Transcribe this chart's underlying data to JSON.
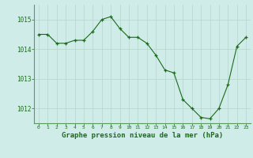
{
  "x": [
    0,
    1,
    2,
    3,
    4,
    5,
    6,
    7,
    8,
    9,
    10,
    11,
    12,
    13,
    14,
    15,
    16,
    17,
    18,
    19,
    20,
    21,
    22,
    23
  ],
  "y": [
    1014.5,
    1014.5,
    1014.2,
    1014.2,
    1014.3,
    1014.3,
    1014.6,
    1015.0,
    1015.1,
    1014.7,
    1014.4,
    1014.4,
    1014.2,
    1013.8,
    1013.3,
    1013.2,
    1012.3,
    1012.0,
    1011.7,
    1011.65,
    1012.0,
    1012.8,
    1014.1,
    1014.4
  ],
  "line_color": "#1a6b1a",
  "marker": "+",
  "bg_color": "#d0ece8",
  "grid_color": "#b8d8d0",
  "xlabel": "Graphe pression niveau de la mer (hPa)",
  "xlabel_color": "#1a6b1a",
  "tick_color": "#1a6b1a",
  "ylim_min": 1011.5,
  "ylim_max": 1015.5,
  "yticks": [
    1012,
    1013,
    1014,
    1015
  ],
  "xticks": [
    0,
    1,
    2,
    3,
    4,
    5,
    6,
    7,
    8,
    9,
    10,
    11,
    12,
    13,
    14,
    15,
    16,
    17,
    18,
    19,
    20,
    21,
    22,
    23
  ]
}
